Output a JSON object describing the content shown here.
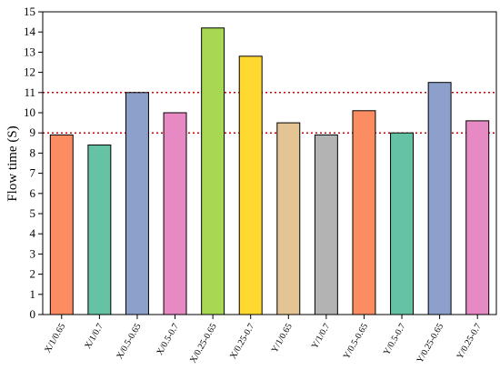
{
  "chart_data": {
    "type": "bar",
    "title": "",
    "xlabel": "",
    "ylabel": "Flow time (S)",
    "ylim": [
      0,
      15
    ],
    "yticks": [
      0,
      1,
      2,
      3,
      4,
      5,
      6,
      7,
      8,
      9,
      10,
      11,
      12,
      13,
      14,
      15
    ],
    "categories": [
      "X/1/0.65",
      "X/1/0.7",
      "X/0.5-0.65",
      "X/0.5-0.7",
      "X/0.25-0.65",
      "X/0.25-0.7",
      "Y/1/0.65",
      "Y/1/0.7",
      "Y/0.5-0.65",
      "Y/0.5-0.7",
      "Y/0.25-0.65",
      "Y/0.25-0.7"
    ],
    "values": [
      8.9,
      8.4,
      11.0,
      10.0,
      14.2,
      12.8,
      9.5,
      8.9,
      10.1,
      9.0,
      11.5,
      9.6
    ],
    "colors": [
      "#fc8d62",
      "#66c2a5",
      "#8da0cb",
      "#e78ac3",
      "#a6d854",
      "#ffd92f",
      "#e5c494",
      "#b3b3b3",
      "#fc8d62",
      "#66c2a5",
      "#8da0cb",
      "#e78ac3"
    ],
    "reference_lines": [
      {
        "y": 9,
        "color": "#cc0000",
        "style": "dotted"
      },
      {
        "y": 11,
        "color": "#cc0000",
        "style": "dotted"
      }
    ],
    "grid": false,
    "legend": "none"
  }
}
